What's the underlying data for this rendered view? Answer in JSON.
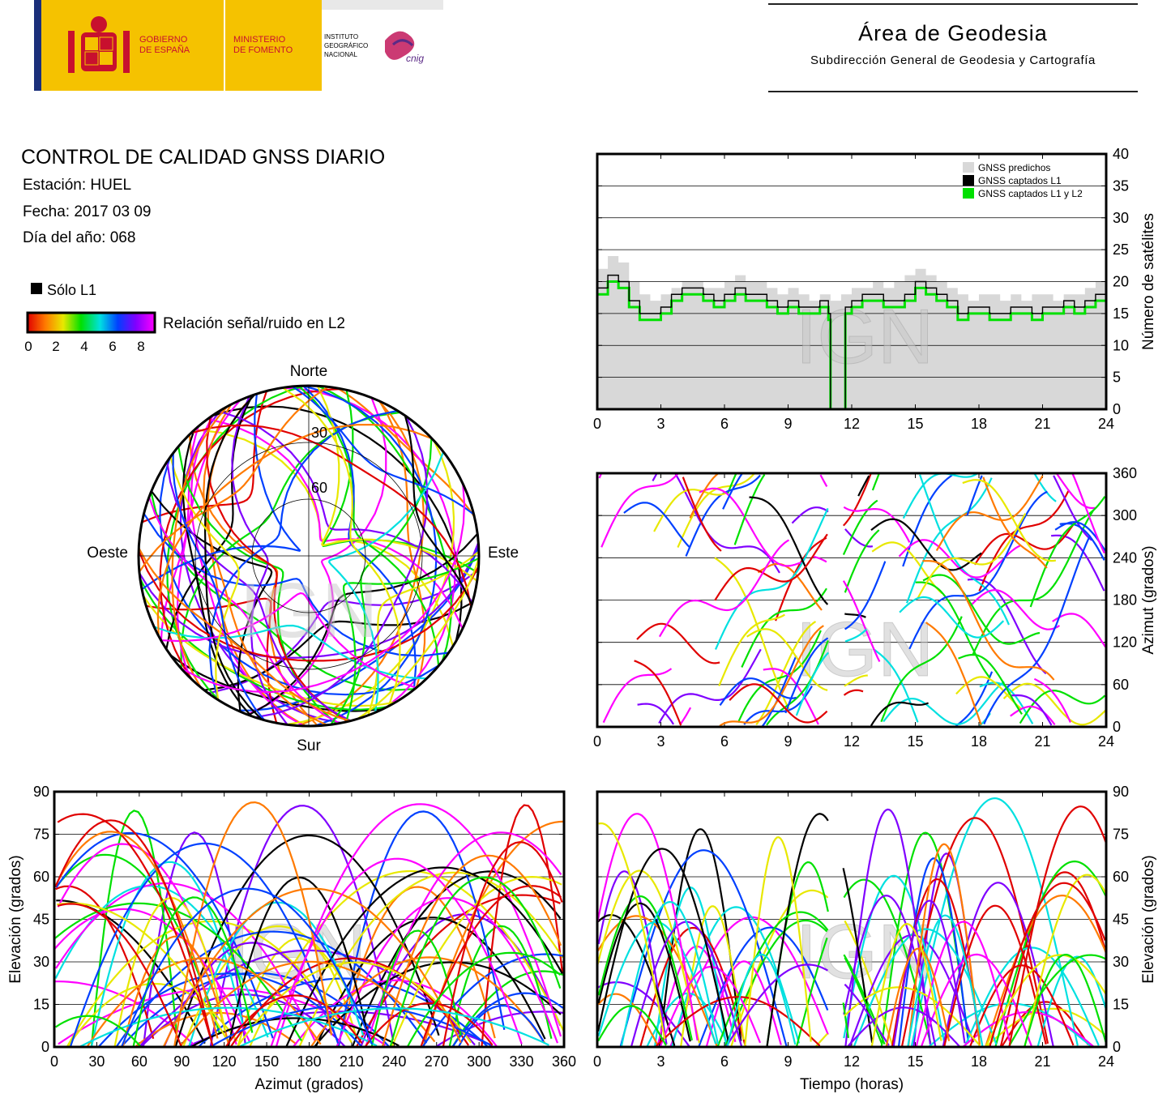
{
  "header": {
    "gov_line1": "GOBIERNO",
    "gov_line2": "DE ESPAÑA",
    "ministry_line1": "MINISTERIO",
    "ministry_line2": "DE FOMENTO",
    "ign_line1": "INSTITUTO",
    "ign_line2": "GEOGRÁFICO",
    "ign_line3": "NACIONAL",
    "cnig_logo_text": "cnig",
    "area_title": "Área de Geodesia",
    "area_subtitle": "Subdirección General de Geodesia y Cartografía"
  },
  "report": {
    "title": "CONTROL DE CALIDAD GNSS DIARIO",
    "station": "Estación: HUEL",
    "date": "Fecha: 2017 03 09",
    "doy": "Día del año: 068"
  },
  "legend": {
    "l1_only": "Sólo L1",
    "snr_label": "Relación señal/ruido en L2",
    "snr_ticks": [
      "0",
      "2",
      "4",
      "6",
      "8"
    ]
  },
  "colors": {
    "snr_scale": [
      "#e00000",
      "#ff7a00",
      "#e8e800",
      "#00e000",
      "#00e0e0",
      "#0040ff",
      "#8000ff",
      "#ff00ff"
    ],
    "predicted": "#d8d8d8",
    "captured_l1": "#000000",
    "captured_l1l2": "#00e000"
  },
  "watermark": "IGN",
  "chart_data": [
    {
      "type": "polar_skyplot",
      "directions": {
        "north": "Norte",
        "south": "Sur",
        "east": "Este",
        "west": "Oeste"
      },
      "elevation_rings": [
        "30",
        "60"
      ],
      "elevation_mask_north_deg": 50
    },
    {
      "type": "area",
      "xlabel": "",
      "ylabel": "Número de satélites",
      "xlim": [
        0,
        24
      ],
      "ylim": [
        0,
        40
      ],
      "xticks": [
        "0",
        "3",
        "6",
        "9",
        "12",
        "15",
        "18",
        "21",
        "24"
      ],
      "yticks": [
        "0",
        "5",
        "10",
        "15",
        "20",
        "25",
        "30",
        "35",
        "40"
      ],
      "legend_position": "top-right",
      "series": [
        {
          "name": "GNSS predichos",
          "x": [
            0,
            0.5,
            1,
            1.5,
            2,
            2.5,
            3,
            3.5,
            4,
            4.5,
            5,
            5.5,
            6,
            6.5,
            7,
            7.5,
            8,
            8.5,
            9,
            9.5,
            10,
            10.5,
            11,
            11.5,
            12,
            12.5,
            13,
            13.5,
            14,
            14.5,
            15,
            15.5,
            16,
            16.5,
            17,
            17.5,
            18,
            18.5,
            19,
            19.5,
            20,
            20.5,
            21,
            21.5,
            22,
            22.5,
            23,
            23.5,
            24
          ],
          "values": [
            22,
            24,
            23,
            20,
            18,
            17,
            18,
            19,
            20,
            20,
            19,
            19,
            20,
            21,
            20,
            20,
            19,
            18,
            19,
            18,
            17,
            18,
            17,
            18,
            19,
            19,
            20,
            19,
            20,
            21,
            22,
            21,
            20,
            19,
            18,
            17,
            18,
            18,
            17,
            18,
            17,
            18,
            18,
            17,
            18,
            18,
            19,
            20,
            20
          ]
        },
        {
          "name": "GNSS captados L1",
          "x": [
            0,
            0.5,
            1,
            1.5,
            2,
            2.5,
            3,
            3.5,
            4,
            4.5,
            5,
            5.5,
            6,
            6.5,
            7,
            7.5,
            8,
            8.5,
            9,
            9.5,
            10,
            10.5,
            10.9,
            11.0,
            11.6,
            11.7,
            12,
            12.5,
            13,
            13.5,
            14,
            14.5,
            15,
            15.5,
            16,
            16.5,
            17,
            17.5,
            18,
            18.5,
            19,
            19.5,
            20,
            20.5,
            21,
            21.5,
            22,
            22.5,
            23,
            23.5,
            24
          ],
          "values": [
            19,
            21,
            20,
            17,
            15,
            15,
            16,
            18,
            19,
            19,
            18,
            17,
            18,
            19,
            18,
            18,
            17,
            16,
            17,
            16,
            16,
            17,
            15,
            0,
            0,
            16,
            17,
            18,
            18,
            17,
            17,
            18,
            20,
            19,
            18,
            17,
            15,
            16,
            16,
            15,
            15,
            16,
            16,
            15,
            16,
            16,
            17,
            16,
            17,
            18,
            18
          ]
        },
        {
          "name": "GNSS captados L1 y L2",
          "x": [
            0,
            0.5,
            1,
            1.5,
            2,
            2.5,
            3,
            3.5,
            4,
            4.5,
            5,
            5.5,
            6,
            6.5,
            7,
            7.5,
            8,
            8.5,
            9,
            9.5,
            10,
            10.5,
            10.9,
            11.0,
            11.6,
            11.7,
            12,
            12.5,
            13,
            13.5,
            14,
            14.5,
            15,
            15.5,
            16,
            16.5,
            17,
            17.5,
            18,
            18.5,
            19,
            19.5,
            20,
            20.5,
            21,
            21.5,
            22,
            22.5,
            23,
            23.5,
            24
          ],
          "values": [
            18,
            20,
            19,
            16,
            14,
            14,
            15,
            17,
            18,
            18,
            17,
            16,
            17,
            18,
            17,
            17,
            16,
            15,
            16,
            15,
            15,
            16,
            14,
            0,
            0,
            15,
            16,
            17,
            17,
            16,
            16,
            17,
            19,
            18,
            17,
            16,
            14,
            15,
            15,
            14,
            14,
            15,
            15,
            14,
            15,
            15,
            16,
            15,
            16,
            17,
            17
          ]
        }
      ]
    },
    {
      "type": "scatter",
      "xlabel": "",
      "ylabel": "Azimut (grados)",
      "xlim": [
        0,
        24
      ],
      "ylim": [
        0,
        360
      ],
      "xticks": [
        "0",
        "3",
        "6",
        "9",
        "12",
        "15",
        "18",
        "21",
        "24"
      ],
      "yticks": [
        "0",
        "60",
        "120",
        "180",
        "240",
        "300",
        "360"
      ],
      "data_gap_hours": [
        10.9,
        11.6
      ]
    },
    {
      "type": "scatter",
      "xlabel": "Azimut (grados)",
      "ylabel": "Elevación (grados)",
      "xlim": [
        0,
        360
      ],
      "ylim": [
        0,
        90
      ],
      "xticks": [
        "0",
        "30",
        "60",
        "90",
        "120",
        "150",
        "180",
        "210",
        "240",
        "270",
        "300",
        "330",
        "360"
      ],
      "yticks": [
        "0",
        "15",
        "30",
        "45",
        "60",
        "75",
        "90"
      ]
    },
    {
      "type": "scatter",
      "xlabel": "Tiempo (horas)",
      "ylabel": "Elevación (grados)",
      "xlim": [
        0,
        24
      ],
      "ylim": [
        0,
        90
      ],
      "xticks": [
        "0",
        "3",
        "6",
        "9",
        "12",
        "15",
        "18",
        "21",
        "24"
      ],
      "yticks": [
        "0",
        "15",
        "30",
        "45",
        "60",
        "75",
        "90"
      ],
      "data_gap_hours": [
        10.9,
        11.6
      ]
    }
  ]
}
